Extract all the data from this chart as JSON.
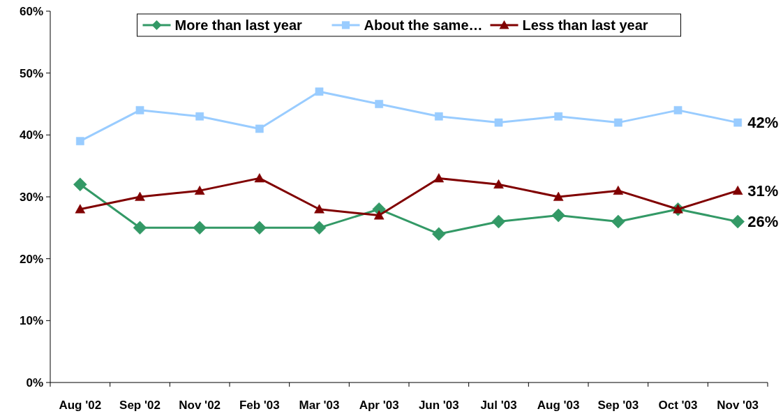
{
  "chart_data": {
    "type": "line",
    "categories": [
      "Aug '02",
      "Sep '02",
      "Nov '02",
      "Feb '03",
      "Mar '03",
      "Apr '03",
      "Jun '03",
      "Jul '03",
      "Aug '03",
      "Sep '03",
      "Oct '03",
      "Nov '03"
    ],
    "series": [
      {
        "name": "More than last year",
        "color": "#339966",
        "marker": "diamond",
        "values": [
          32,
          25,
          25,
          25,
          25,
          28,
          24,
          26,
          27,
          26,
          28,
          26
        ],
        "value_labels": [
          null,
          null,
          null,
          null,
          null,
          null,
          null,
          null,
          null,
          null,
          null,
          "26%"
        ]
      },
      {
        "name": "About the same…",
        "color": "#99ccff",
        "marker": "square",
        "values": [
          39,
          44,
          43,
          41,
          47,
          45,
          43,
          42,
          43,
          42,
          44,
          42
        ],
        "value_labels": [
          null,
          null,
          null,
          null,
          null,
          null,
          null,
          null,
          null,
          null,
          null,
          "42%"
        ]
      },
      {
        "name": "Less than last year",
        "color": "#800000",
        "marker": "triangle",
        "values": [
          28,
          30,
          31,
          33,
          28,
          27,
          33,
          32,
          30,
          31,
          28,
          31
        ],
        "value_labels": [
          null,
          null,
          null,
          null,
          null,
          null,
          null,
          null,
          null,
          null,
          null,
          "31%"
        ]
      }
    ],
    "ylim": [
      0,
      60
    ],
    "yticks": [
      {
        "value": 0,
        "label": "0%"
      },
      {
        "value": 10,
        "label": "10%"
      },
      {
        "value": 20,
        "label": "20%"
      },
      {
        "value": 30,
        "label": "30%"
      },
      {
        "value": 40,
        "label": "40%"
      },
      {
        "value": 50,
        "label": "50%"
      },
      {
        "value": 60,
        "label": "60%"
      }
    ],
    "legend": "top",
    "grid": false,
    "line_style": "solid"
  }
}
